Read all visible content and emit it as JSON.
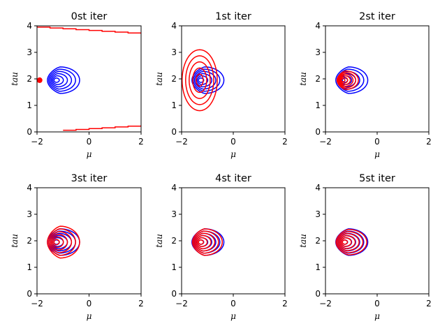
{
  "chart_data": [
    {
      "type": "contour",
      "title": "0st iter",
      "xlabel": "μ",
      "ylabel": "tau",
      "xlim": [
        -2,
        2
      ],
      "ylim": [
        0,
        4
      ],
      "xticks": [
        "-2",
        "0",
        "2"
      ],
      "yticks": [
        "0",
        "1",
        "2",
        "3",
        "4"
      ],
      "blue_contours": {
        "center": [
          -1.3,
          1.95
        ],
        "levels": 6,
        "max_halfwidth": [
          0.75,
          0.5
        ]
      },
      "red_contours": {
        "kind": "edge-step-lines",
        "upper_y": [
          3.95,
          3.7
        ],
        "lower_y": [
          0.0,
          0.25
        ]
      },
      "red_point": [
        -1.9,
        1.95
      ],
      "colors": {
        "target": "#0000ff",
        "approx": "#ff0000"
      }
    },
    {
      "type": "contour",
      "title": "1st iter",
      "xlabel": "μ",
      "ylabel": "tau",
      "xlim": [
        -2,
        2
      ],
      "ylim": [
        0,
        4
      ],
      "xticks": [
        "-2",
        "0",
        "2"
      ],
      "yticks": [
        "0",
        "1",
        "2",
        "3",
        "4"
      ],
      "blue_contours": {
        "center": [
          -1.3,
          1.95
        ],
        "levels": 6,
        "max_halfwidth": [
          0.75,
          0.5
        ]
      },
      "red_contours": {
        "center": [
          -1.3,
          1.95
        ],
        "levels": 5,
        "max_halfwidth": [
          0.68,
          1.15
        ]
      },
      "colors": {
        "target": "#0000ff",
        "approx": "#ff0000"
      }
    },
    {
      "type": "contour",
      "title": "2st iter",
      "xlabel": "μ",
      "ylabel": "tau",
      "xlim": [
        -2,
        2
      ],
      "ylim": [
        0,
        4
      ],
      "xticks": [
        "-2",
        "0",
        "2"
      ],
      "yticks": [
        "0",
        "1",
        "2",
        "3",
        "4"
      ],
      "blue_contours": {
        "center": [
          -1.3,
          1.95
        ],
        "levels": 6,
        "max_halfwidth": [
          0.75,
          0.5
        ]
      },
      "red_contours": {
        "center": [
          -1.35,
          1.95
        ],
        "levels": 6,
        "max_halfwidth": [
          0.5,
          0.35
        ]
      },
      "colors": {
        "target": "#0000ff",
        "approx": "#ff0000"
      }
    },
    {
      "type": "contour",
      "title": "3st iter",
      "xlabel": "μ",
      "ylabel": "tau",
      "xlim": [
        -2,
        2
      ],
      "ylim": [
        0,
        4
      ],
      "xticks": [
        "-2",
        "0",
        "2"
      ],
      "yticks": [
        "0",
        "1",
        "2",
        "3",
        "4"
      ],
      "blue_contours": {
        "center": [
          -1.3,
          1.95
        ],
        "levels": 6,
        "max_halfwidth": [
          0.75,
          0.5
        ]
      },
      "red_contours": {
        "center": [
          -1.3,
          1.95
        ],
        "levels": 6,
        "max_halfwidth": [
          0.75,
          0.6
        ]
      },
      "colors": {
        "target": "#0000ff",
        "approx": "#ff0000"
      }
    },
    {
      "type": "contour",
      "title": "4st iter",
      "xlabel": "μ",
      "ylabel": "tau",
      "xlim": [
        -2,
        2
      ],
      "ylim": [
        0,
        4
      ],
      "xticks": [
        "-2",
        "0",
        "2"
      ],
      "yticks": [
        "0",
        "1",
        "2",
        "3",
        "4"
      ],
      "blue_contours": {
        "center": [
          -1.3,
          1.95
        ],
        "levels": 6,
        "max_halfwidth": [
          0.75,
          0.5
        ]
      },
      "red_contours": {
        "center": [
          -1.3,
          1.95
        ],
        "levels": 6,
        "max_halfwidth": [
          0.7,
          0.5
        ]
      },
      "colors": {
        "target": "#0000ff",
        "approx": "#ff0000"
      }
    },
    {
      "type": "contour",
      "title": "5st iter",
      "xlabel": "μ",
      "ylabel": "tau",
      "xlim": [
        -2,
        2
      ],
      "ylim": [
        0,
        4
      ],
      "xticks": [
        "-2",
        "0",
        "2"
      ],
      "yticks": [
        "0",
        "1",
        "2",
        "3",
        "4"
      ],
      "blue_contours": {
        "center": [
          -1.3,
          1.95
        ],
        "levels": 6,
        "max_halfwidth": [
          0.75,
          0.5
        ]
      },
      "red_contours": {
        "center": [
          -1.3,
          1.95
        ],
        "levels": 6,
        "max_halfwidth": [
          0.72,
          0.48
        ]
      },
      "colors": {
        "target": "#0000ff",
        "approx": "#ff0000"
      }
    }
  ]
}
